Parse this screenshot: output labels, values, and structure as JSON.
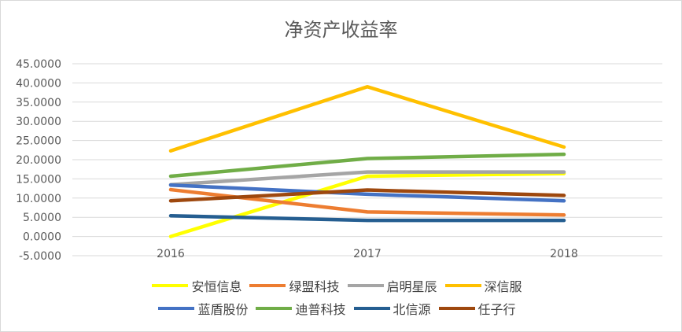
{
  "chart_data": {
    "type": "line",
    "title": "净资产收益率",
    "x": [
      "2016",
      "2017",
      "2018"
    ],
    "ylim": [
      -5,
      45
    ],
    "ytick_step": 5,
    "ytick_labels": [
      "-5.0000",
      "0.0000",
      "5.0000",
      "10.0000",
      "15.0000",
      "20.0000",
      "25.0000",
      "30.0000",
      "35.0000",
      "40.0000",
      "45.0000"
    ],
    "grid": true,
    "legend_position": "bottom",
    "series": [
      {
        "name": "安恒信息",
        "color": "#ffff00",
        "values": [
          0.0,
          15.7,
          16.4
        ]
      },
      {
        "name": "绿盟科技",
        "color": "#ed7d31",
        "values": [
          12.2,
          6.4,
          5.6
        ]
      },
      {
        "name": "启明星辰",
        "color": "#a5a5a5",
        "values": [
          13.5,
          16.8,
          16.8
        ]
      },
      {
        "name": "深信服",
        "color": "#ffc000",
        "values": [
          22.3,
          39.0,
          23.3
        ]
      },
      {
        "name": "蓝盾股份",
        "color": "#4472c4",
        "values": [
          13.4,
          11.0,
          9.3
        ]
      },
      {
        "name": "迪普科技",
        "color": "#70ad47",
        "values": [
          15.7,
          20.3,
          21.4
        ]
      },
      {
        "name": "北信源",
        "color": "#255e91",
        "values": [
          5.4,
          4.2,
          4.2
        ]
      },
      {
        "name": "任子行",
        "color": "#9e480e",
        "values": [
          9.3,
          12.1,
          10.7
        ]
      }
    ]
  }
}
